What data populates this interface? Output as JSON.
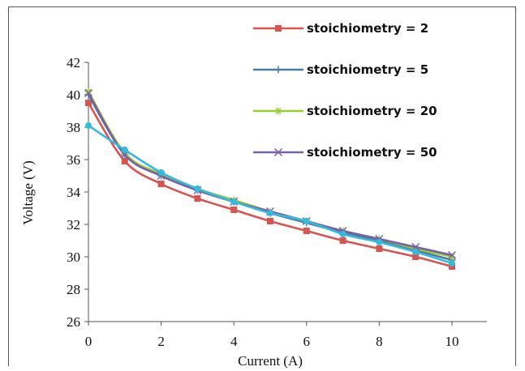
{
  "chart_data": {
    "type": "line",
    "title": "",
    "xlabel": "Current (A)",
    "ylabel": "Voltage (V)",
    "xlim": [
      0,
      10
    ],
    "ylim": [
      26,
      42
    ],
    "x_ticks": [
      "0",
      "2",
      "4",
      "6",
      "8",
      "10"
    ],
    "y_ticks": [
      "26",
      "28",
      "30",
      "32",
      "34",
      "36",
      "38",
      "40",
      "42"
    ],
    "grid": false,
    "legend_position": "top-right",
    "x": [
      0,
      1,
      2,
      3,
      4,
      5,
      6,
      7,
      8,
      9,
      10
    ],
    "series": [
      {
        "name": "stoichiometry = 2",
        "color": "#d9534f",
        "marker": "square",
        "values": [
          39.5,
          35.9,
          34.5,
          33.6,
          32.9,
          32.2,
          31.6,
          31.0,
          30.5,
          30.0,
          29.4
        ]
      },
      {
        "name": "stoichiometry = 5",
        "color": "#4a7ba7",
        "marker": "plus",
        "values": [
          40.0,
          36.3,
          35.0,
          34.1,
          33.4,
          32.7,
          32.1,
          31.5,
          31.0,
          30.4,
          29.8
        ]
      },
      {
        "name": "stoichiometry = 20",
        "color": "#9acd32",
        "marker": "asterisk",
        "values": [
          40.2,
          36.4,
          35.1,
          34.2,
          33.5,
          32.8,
          32.2,
          31.6,
          31.1,
          30.5,
          30.0
        ]
      },
      {
        "name": "stoichiometry = 50",
        "color": "#7a5ea8",
        "marker": "x",
        "values": [
          40.1,
          36.3,
          35.0,
          34.1,
          33.4,
          32.8,
          32.2,
          31.6,
          31.1,
          30.6,
          30.1
        ]
      },
      {
        "name": "",
        "color": "#33bbdd",
        "marker": "circle",
        "values": [
          38.1,
          36.6,
          35.2,
          34.2,
          33.4,
          32.7,
          32.2,
          31.4,
          30.9,
          30.3,
          29.6
        ]
      }
    ]
  }
}
